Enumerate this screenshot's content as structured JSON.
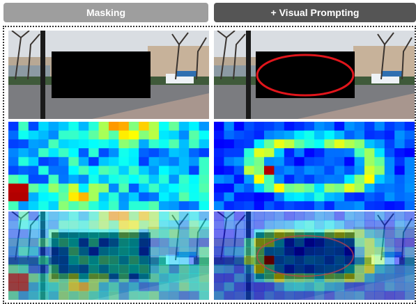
{
  "headers": {
    "left": "Masking",
    "right": "+ Visual Prompting"
  }
}
